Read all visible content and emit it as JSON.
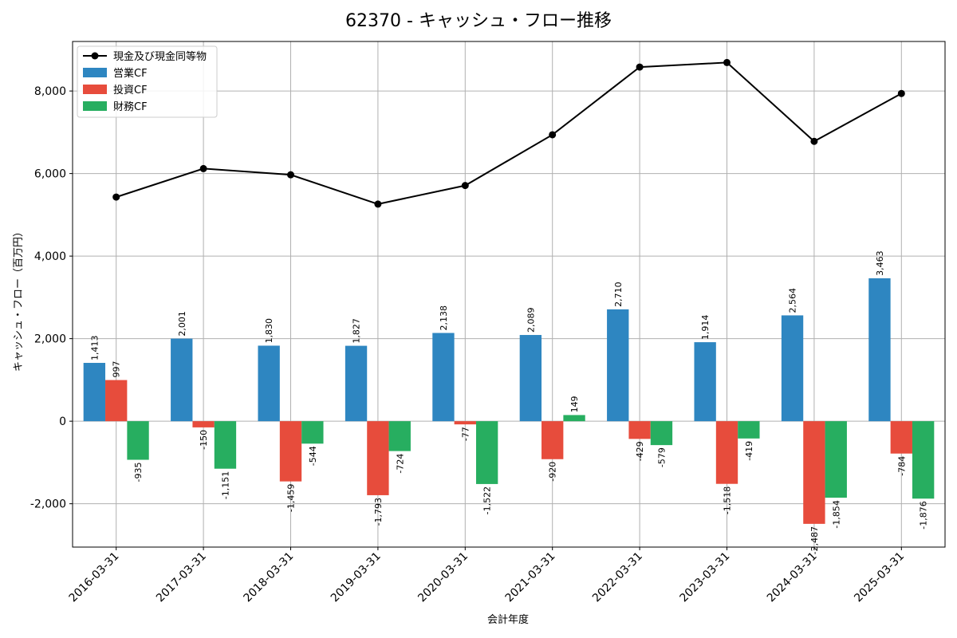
{
  "chart_data": {
    "type": "bar",
    "title": "62370 - キャッシュ・フロー推移",
    "xlabel": "会計年度",
    "ylabel": "キャッシュ・フロー（百万円）",
    "categories": [
      "2016-03-31",
      "2017-03-31",
      "2018-03-31",
      "2019-03-31",
      "2020-03-31",
      "2021-03-31",
      "2022-03-31",
      "2023-03-31",
      "2024-03-31",
      "2025-03-31"
    ],
    "series": [
      {
        "name": "営業CF",
        "type": "bar",
        "color": "#2e86c1",
        "values": [
          1413,
          2001,
          1830,
          1827,
          2138,
          2089,
          2710,
          1914,
          2564,
          3463
        ],
        "labels": [
          "1,413",
          "2,001",
          "1,830",
          "1,827",
          "2,138",
          "2,089",
          "2,710",
          "1,914",
          "2,564",
          "3,463"
        ]
      },
      {
        "name": "投資CF",
        "type": "bar",
        "color": "#e74c3c",
        "values": [
          997,
          -150,
          -1459,
          -1793,
          -77,
          -920,
          -429,
          -1518,
          -2487,
          -784
        ],
        "labels": [
          "997",
          "-150",
          "-1,459",
          "-1,793",
          "-77",
          "-920",
          "-429",
          "-1,518",
          "-2,487",
          "-784"
        ]
      },
      {
        "name": "財務CF",
        "type": "bar",
        "color": "#27ae60",
        "values": [
          -935,
          -1151,
          -544,
          -724,
          -1522,
          149,
          -579,
          -419,
          -1854,
          -1876
        ],
        "labels": [
          "-935",
          "-1,151",
          "-544",
          "-724",
          "-1,522",
          "149",
          "-579",
          "-419",
          "-1,854",
          "-1,876"
        ]
      },
      {
        "name": "現金及び現金同等物",
        "type": "line",
        "color": "#000000",
        "values": [
          5430,
          6120,
          5970,
          5260,
          5710,
          6940,
          8580,
          8690,
          6780,
          7940
        ]
      }
    ],
    "ylim": [
      -3050,
      9200
    ],
    "yticks": [
      -2000,
      0,
      2000,
      4000,
      6000,
      8000
    ],
    "ytick_labels": [
      "-2,000",
      "0",
      "2,000",
      "4,000",
      "6,000",
      "8,000"
    ],
    "grid": true,
    "legend_position": "top-left"
  }
}
